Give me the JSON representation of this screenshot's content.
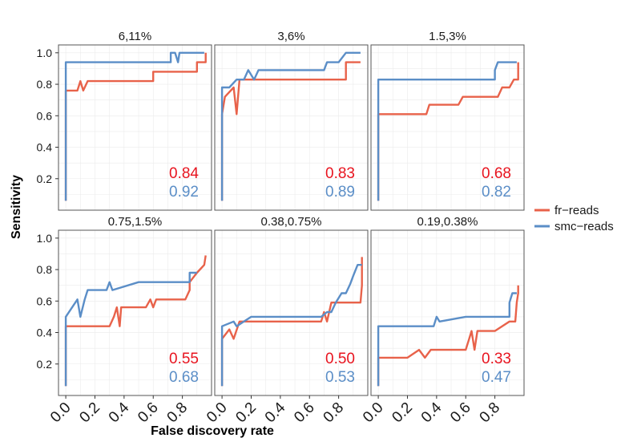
{
  "colors": {
    "fr": "#e8624a",
    "smc": "#5b8ec7",
    "auc_fr": "#e8141f",
    "auc_smc": "#5b8ec7",
    "grid": "#ebebeb",
    "border": "#555555"
  },
  "chart_data": {
    "type": "line",
    "xlabel": "False discovery rate",
    "ylabel": "Sensitivity",
    "xlim": [
      -0.05,
      1.0
    ],
    "ylim": [
      0.0,
      1.05
    ],
    "x_ticks": [
      "0.0",
      "0.2",
      "0.4",
      "0.6",
      "0.8"
    ],
    "y_ticks": [
      "0.2",
      "0.4",
      "0.6",
      "0.8",
      "1.0"
    ],
    "grid": true,
    "legend_position": "right",
    "legend": [
      {
        "key": "fr",
        "label": "fr−reads"
      },
      {
        "key": "smc",
        "label": "smc−reads"
      }
    ],
    "panels": [
      {
        "title": "6,11%",
        "auc": {
          "fr": "0.84",
          "smc": "0.92"
        },
        "series": [
          {
            "key": "fr",
            "x": [
              0.0,
              0.0,
              0.0,
              0.0,
              0.05,
              0.08,
              0.1,
              0.12,
              0.15,
              0.4,
              0.55,
              0.56,
              0.58,
              0.6,
              0.6,
              0.75,
              0.76,
              0.88,
              0.9,
              0.9,
              0.95,
              0.96,
              0.96
            ],
            "y": [
              0.06,
              0.3,
              0.6,
              0.76,
              0.76,
              0.76,
              0.82,
              0.76,
              0.82,
              0.82,
              0.82,
              0.82,
              0.82,
              0.82,
              0.88,
              0.88,
              0.88,
              0.88,
              0.88,
              0.94,
              0.94,
              0.94,
              1.0
            ]
          },
          {
            "key": "smc",
            "x": [
              0.0,
              0.0,
              0.0,
              0.0,
              0.05,
              0.3,
              0.5,
              0.72,
              0.72,
              0.75,
              0.77,
              0.78,
              0.95
            ],
            "y": [
              0.06,
              0.3,
              0.6,
              0.94,
              0.94,
              0.94,
              0.94,
              0.94,
              1.0,
              1.0,
              0.94,
              1.0,
              1.0
            ]
          }
        ]
      },
      {
        "title": "3,6%",
        "auc": {
          "fr": "0.83",
          "smc": "0.89"
        },
        "series": [
          {
            "key": "fr",
            "x": [
              0.0,
              0.0,
              0.0,
              0.02,
              0.08,
              0.1,
              0.12,
              0.15,
              0.4,
              0.6,
              0.75,
              0.85,
              0.85,
              0.9,
              0.95
            ],
            "y": [
              0.06,
              0.4,
              0.61,
              0.72,
              0.78,
              0.61,
              0.83,
              0.83,
              0.83,
              0.83,
              0.83,
              0.83,
              0.94,
              0.94,
              0.94
            ]
          },
          {
            "key": "smc",
            "x": [
              0.0,
              0.0,
              0.0,
              0.05,
              0.1,
              0.1,
              0.15,
              0.18,
              0.22,
              0.25,
              0.28,
              0.35,
              0.6,
              0.7,
              0.72,
              0.8,
              0.85,
              0.95
            ],
            "y": [
              0.06,
              0.4,
              0.78,
              0.78,
              0.83,
              0.83,
              0.83,
              0.89,
              0.83,
              0.89,
              0.89,
              0.89,
              0.89,
              0.89,
              0.94,
              0.94,
              1.0,
              1.0
            ]
          }
        ]
      },
      {
        "title": "1.5,3%",
        "auc": {
          "fr": "0.68",
          "smc": "0.82"
        },
        "series": [
          {
            "key": "fr",
            "x": [
              0.0,
              0.0,
              0.0,
              0.3,
              0.33,
              0.35,
              0.4,
              0.55,
              0.58,
              0.6,
              0.75,
              0.82,
              0.85,
              0.9,
              0.93,
              0.96,
              0.96
            ],
            "y": [
              0.06,
              0.3,
              0.61,
              0.61,
              0.61,
              0.67,
              0.67,
              0.67,
              0.72,
              0.72,
              0.72,
              0.72,
              0.78,
              0.78,
              0.83,
              0.83,
              0.94
            ]
          },
          {
            "key": "smc",
            "x": [
              0.0,
              0.0,
              0.0,
              0.3,
              0.5,
              0.78,
              0.8,
              0.8,
              0.82,
              0.95
            ],
            "y": [
              0.06,
              0.4,
              0.83,
              0.83,
              0.83,
              0.83,
              0.83,
              0.89,
              0.94,
              0.94
            ]
          }
        ]
      },
      {
        "title": "0.75,1.5%",
        "auc": {
          "fr": "0.55",
          "smc": "0.68"
        },
        "series": [
          {
            "key": "fr",
            "x": [
              0.0,
              0.0,
              0.0,
              0.2,
              0.3,
              0.33,
              0.35,
              0.37,
              0.38,
              0.5,
              0.55,
              0.58,
              0.6,
              0.62,
              0.75,
              0.82,
              0.85,
              0.85,
              0.9,
              0.95,
              0.96
            ],
            "y": [
              0.06,
              0.3,
              0.44,
              0.44,
              0.44,
              0.5,
              0.56,
              0.44,
              0.56,
              0.56,
              0.56,
              0.61,
              0.56,
              0.61,
              0.61,
              0.61,
              0.67,
              0.72,
              0.78,
              0.83,
              0.89
            ]
          },
          {
            "key": "smc",
            "x": [
              0.0,
              0.0,
              0.0,
              0.08,
              0.1,
              0.13,
              0.15,
              0.2,
              0.28,
              0.3,
              0.32,
              0.5,
              0.75,
              0.8,
              0.85,
              0.85,
              0.88,
              0.9
            ],
            "y": [
              0.06,
              0.3,
              0.5,
              0.61,
              0.5,
              0.61,
              0.67,
              0.67,
              0.67,
              0.72,
              0.67,
              0.72,
              0.72,
              0.72,
              0.72,
              0.78,
              0.78,
              0.78
            ]
          }
        ]
      },
      {
        "title": "0.38,0.75%",
        "auc": {
          "fr": "0.50",
          "smc": "0.53"
        },
        "series": [
          {
            "key": "fr",
            "x": [
              0.0,
              0.0,
              0.0,
              0.05,
              0.08,
              0.12,
              0.15,
              0.4,
              0.68,
              0.7,
              0.72,
              0.75,
              0.85,
              0.9,
              0.95,
              0.96,
              0.96
            ],
            "y": [
              0.06,
              0.3,
              0.36,
              0.42,
              0.36,
              0.47,
              0.47,
              0.47,
              0.47,
              0.53,
              0.47,
              0.59,
              0.59,
              0.59,
              0.59,
              0.7,
              0.88
            ]
          },
          {
            "key": "smc",
            "x": [
              0.0,
              0.0,
              0.0,
              0.08,
              0.1,
              0.15,
              0.2,
              0.4,
              0.65,
              0.68,
              0.72,
              0.75,
              0.78,
              0.82,
              0.85,
              0.88,
              0.9,
              0.93,
              0.96
            ],
            "y": [
              0.06,
              0.3,
              0.44,
              0.47,
              0.44,
              0.47,
              0.5,
              0.5,
              0.5,
              0.5,
              0.53,
              0.53,
              0.59,
              0.65,
              0.65,
              0.71,
              0.76,
              0.83,
              0.83
            ]
          }
        ]
      },
      {
        "title": "0.19,0.38%",
        "auc": {
          "fr": "0.33",
          "smc": "0.47"
        },
        "series": [
          {
            "key": "fr",
            "x": [
              0.0,
              0.0,
              0.0,
              0.2,
              0.28,
              0.32,
              0.36,
              0.55,
              0.6,
              0.62,
              0.64,
              0.66,
              0.68,
              0.7,
              0.72,
              0.8,
              0.9,
              0.94,
              0.95,
              0.96,
              0.96
            ],
            "y": [
              0.06,
              0.2,
              0.24,
              0.24,
              0.29,
              0.24,
              0.29,
              0.29,
              0.29,
              0.35,
              0.41,
              0.29,
              0.41,
              0.41,
              0.41,
              0.41,
              0.47,
              0.47,
              0.59,
              0.65,
              0.7
            ]
          },
          {
            "key": "smc",
            "x": [
              0.0,
              0.0,
              0.0,
              0.3,
              0.38,
              0.4,
              0.42,
              0.6,
              0.85,
              0.9,
              0.9,
              0.92,
              0.95
            ],
            "y": [
              0.06,
              0.3,
              0.44,
              0.44,
              0.44,
              0.5,
              0.47,
              0.5,
              0.5,
              0.5,
              0.59,
              0.65,
              0.65
            ]
          }
        ]
      }
    ]
  }
}
